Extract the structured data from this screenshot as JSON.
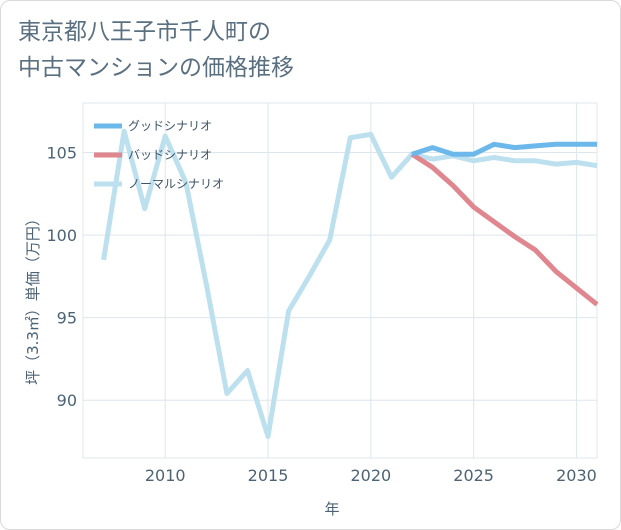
{
  "title_lines": [
    "東京都八王子市千人町の",
    "中古マンションの価格推移"
  ],
  "chart_data": {
    "type": "line",
    "title": "東京都八王子市千人町の中古マンションの価格推移",
    "xlabel": "年",
    "ylabel": "坪（3.3㎡）単価（万円）",
    "xlim": [
      2006,
      2031
    ],
    "ylim": [
      86.5,
      108
    ],
    "xticks": [
      2010,
      2015,
      2020,
      2025,
      2030
    ],
    "yticks": [
      90,
      95,
      100,
      105
    ],
    "grid": true,
    "legend_position": "top-left",
    "series": [
      {
        "name": "グッドシナリオ",
        "color": "#6cb8ea",
        "x": [
          2022,
          2023,
          2024,
          2025,
          2026,
          2027,
          2028,
          2029,
          2030,
          2031
        ],
        "y": [
          104.9,
          105.3,
          104.9,
          104.9,
          105.5,
          105.3,
          105.4,
          105.5,
          105.5,
          105.5
        ]
      },
      {
        "name": "バッドシナリオ",
        "color": "#e0868e",
        "x": [
          2022,
          2023,
          2024,
          2025,
          2026,
          2027,
          2028,
          2029,
          2030,
          2031
        ],
        "y": [
          104.9,
          104.1,
          103.0,
          101.7,
          100.8,
          99.9,
          99.1,
          97.8,
          96.8,
          95.8
        ]
      },
      {
        "name": "ノーマルシナリオ",
        "color": "#bde0ef",
        "x": [
          2007,
          2008,
          2009,
          2010,
          2011,
          2012,
          2013,
          2014,
          2015,
          2016,
          2017,
          2018,
          2019,
          2020,
          2021,
          2022,
          2023,
          2024,
          2025,
          2026,
          2027,
          2028,
          2029,
          2030,
          2031
        ],
        "y": [
          98.5,
          106.3,
          101.6,
          106.0,
          103.2,
          97.0,
          90.4,
          91.8,
          87.8,
          95.4,
          97.5,
          99.7,
          105.9,
          106.1,
          103.5,
          104.9,
          104.6,
          104.8,
          104.5,
          104.7,
          104.5,
          104.5,
          104.3,
          104.4,
          104.2
        ]
      }
    ]
  }
}
